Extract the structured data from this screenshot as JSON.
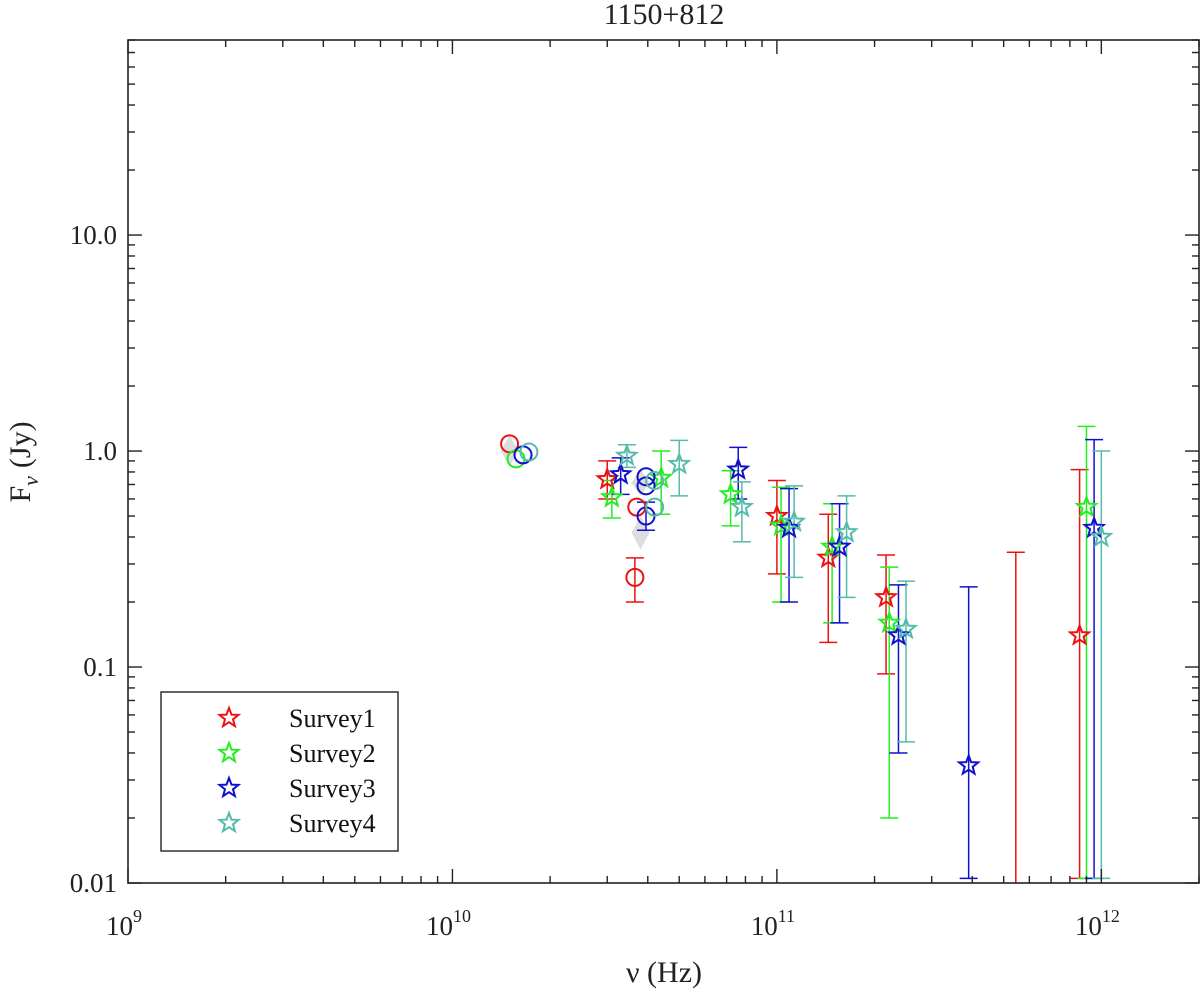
{
  "chart_data": {
    "type": "scatter",
    "title": "1150+812",
    "xlabel": "ν (Hz)",
    "ylabel_main": "F",
    "ylabel_sub": "ν",
    "ylabel_unit": "(Jy)",
    "xscale": "log",
    "yscale": "log",
    "xlim": [
      1000000000.0,
      2000000000000.0
    ],
    "ylim": [
      0.01,
      80
    ],
    "x_ticks": [
      {
        "value": 1000000000.0,
        "base": "10",
        "exp": "9"
      },
      {
        "value": 10000000000.0,
        "base": "10",
        "exp": "10"
      },
      {
        "value": 100000000000.0,
        "base": "10",
        "exp": "11"
      },
      {
        "value": 1000000000000.0,
        "base": "10",
        "exp": "12"
      }
    ],
    "y_ticks": [
      {
        "value": 0.01,
        "label": "0.01"
      },
      {
        "value": 0.1,
        "label": "0.1"
      },
      {
        "value": 1,
        "label": "1.0"
      },
      {
        "value": 10,
        "label": "10.0"
      }
    ],
    "legend_position": "bottom-left",
    "series": [
      {
        "name": "Survey1",
        "color": "#ee1111",
        "stars": [
          {
            "x": 30000000000.0,
            "y": 0.74,
            "lo": 0.6,
            "hi": 0.9
          },
          {
            "x": 100000000000.0,
            "y": 0.5,
            "lo": 0.27,
            "hi": 0.73
          },
          {
            "x": 144000000000.0,
            "y": 0.32,
            "lo": 0.13,
            "hi": 0.51
          },
          {
            "x": 217000000000.0,
            "y": 0.21,
            "lo": 0.093,
            "hi": 0.33
          },
          {
            "x": 857000000000.0,
            "y": 0.14,
            "lo": 0.0105,
            "hi": 0.82
          }
        ],
        "upper_limits": [
          {
            "x": 545000000000.0,
            "hi": 0.34
          }
        ],
        "circles": [
          {
            "x": 15000000000.0,
            "y": 1.08,
            "lo": null,
            "hi": null
          },
          {
            "x": 37000000000.0,
            "y": 0.55,
            "lo": null,
            "hi": null
          },
          {
            "x": 36500000000.0,
            "y": 0.26,
            "lo": 0.2,
            "hi": 0.32
          }
        ]
      },
      {
        "name": "Survey2",
        "color": "#22ee22",
        "stars": [
          {
            "x": 31000000000.0,
            "y": 0.61,
            "lo": 0.49,
            "hi": 0.73
          },
          {
            "x": 44000000000.0,
            "y": 0.75,
            "lo": 0.51,
            "hi": 1.0
          },
          {
            "x": 72000000000.0,
            "y": 0.63,
            "lo": 0.45,
            "hi": 0.81
          },
          {
            "x": 103000000000.0,
            "y": 0.45,
            "lo": 0.2,
            "hi": 0.68
          },
          {
            "x": 148000000000.0,
            "y": 0.36,
            "lo": 0.16,
            "hi": 0.57
          },
          {
            "x": 222000000000.0,
            "y": 0.16,
            "lo": 0.02,
            "hi": 0.29
          },
          {
            "x": 900000000000.0,
            "y": 0.55,
            "lo": 0.0105,
            "hi": 1.3
          }
        ],
        "upper_limits": [],
        "circles": [
          {
            "x": 15700000000.0,
            "y": 0.92,
            "lo": null,
            "hi": null
          }
        ]
      },
      {
        "name": "Survey3",
        "color": "#1111cc",
        "stars": [
          {
            "x": 33000000000.0,
            "y": 0.78,
            "lo": 0.63,
            "hi": 0.93
          },
          {
            "x": 76000000000.0,
            "y": 0.82,
            "lo": 0.6,
            "hi": 1.04
          },
          {
            "x": 109000000000.0,
            "y": 0.44,
            "lo": 0.2,
            "hi": 0.67
          },
          {
            "x": 156000000000.0,
            "y": 0.36,
            "lo": 0.16,
            "hi": 0.57
          },
          {
            "x": 237000000000.0,
            "y": 0.14,
            "lo": 0.04,
            "hi": 0.24
          },
          {
            "x": 390000000000.0,
            "y": 0.035,
            "lo": 0.0105,
            "hi": 0.235
          },
          {
            "x": 950000000000.0,
            "y": 0.44,
            "lo": 0.0105,
            "hi": 1.13
          }
        ],
        "upper_limits": [],
        "circles": [
          {
            "x": 16500000000.0,
            "y": 0.96,
            "lo": null,
            "hi": null
          },
          {
            "x": 39500000000.0,
            "y": 0.76,
            "lo": null,
            "hi": null
          },
          {
            "x": 39500000000.0,
            "y": 0.69,
            "lo": null,
            "hi": null
          },
          {
            "x": 39500000000.0,
            "y": 0.5,
            "lo": 0.43,
            "hi": 0.58
          }
        ]
      },
      {
        "name": "Survey4",
        "color": "#55bbaa",
        "stars": [
          {
            "x": 34500000000.0,
            "y": 0.95,
            "lo": 0.84,
            "hi": 1.07
          },
          {
            "x": 50000000000.0,
            "y": 0.87,
            "lo": 0.62,
            "hi": 1.12
          },
          {
            "x": 78000000000.0,
            "y": 0.55,
            "lo": 0.38,
            "hi": 0.72
          },
          {
            "x": 113000000000.0,
            "y": 0.47,
            "lo": 0.26,
            "hi": 0.69
          },
          {
            "x": 164000000000.0,
            "y": 0.42,
            "lo": 0.21,
            "hi": 0.62
          },
          {
            "x": 250000000000.0,
            "y": 0.15,
            "lo": 0.045,
            "hi": 0.25
          },
          {
            "x": 1000000000000.0,
            "y": 0.4,
            "lo": 0.0105,
            "hi": 1.0
          }
        ],
        "upper_limits": [],
        "circles": [
          {
            "x": 17200000000.0,
            "y": 0.99,
            "lo": null,
            "hi": null
          },
          {
            "x": 42000000000.0,
            "y": 0.73,
            "lo": null,
            "hi": null
          },
          {
            "x": 42000000000.0,
            "y": 0.55,
            "lo": null,
            "hi": null
          }
        ]
      }
    ],
    "background_markers": [
      {
        "shape": "diamond",
        "x": 15000000000.0,
        "y": 1.0,
        "lo": 0.85,
        "hi": 1.18
      },
      {
        "shape": "diamond",
        "x": 38000000000.0,
        "y": 0.42,
        "lo": 0.35,
        "hi": 0.5
      },
      {
        "shape": "diamond",
        "x": 38000000000.0,
        "y": 0.72,
        "lo": 0.62,
        "hi": 0.82
      }
    ]
  }
}
